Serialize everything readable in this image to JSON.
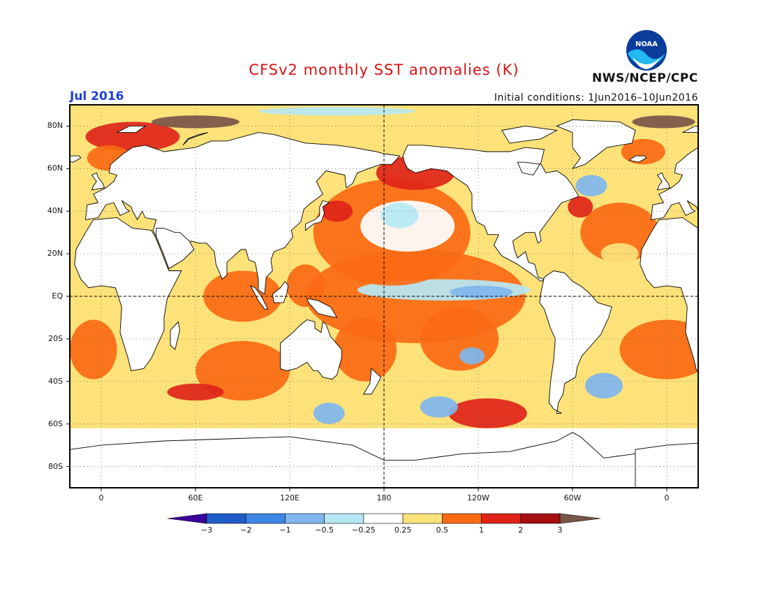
{
  "title": "CFSv2 monthly SST anomalies (K)",
  "month_label": "Jul 2016",
  "initial_conditions": "Initial conditions: 1Jun2016–10Jun2016",
  "agency": "NWS/NCEP/CPC",
  "logo_text": "NOAA",
  "colors": {
    "land": "#ffffff",
    "frame": "#000000",
    "grid": "#666666"
  },
  "map": {
    "lon_range": [
      -20,
      380
    ],
    "lat_range": [
      -90,
      90
    ],
    "grid": "dotted",
    "dashed_reference_lines": [
      "equator",
      "180"
    ],
    "lat_ticks": [
      "80N",
      "60N",
      "40N",
      "20N",
      "EQ",
      "20S",
      "40S",
      "60S",
      "80S"
    ],
    "lat_tick_values": [
      80,
      60,
      40,
      20,
      0,
      -20,
      -40,
      -60,
      -80
    ],
    "lon_ticks": [
      "0",
      "60E",
      "120E",
      "180",
      "120W",
      "60W",
      "0"
    ],
    "lon_tick_values": [
      0,
      60,
      120,
      180,
      240,
      300,
      360
    ]
  },
  "colorbar": {
    "labels": [
      "−3",
      "−2",
      "−1",
      "−0.5",
      "−0.25",
      "0.25",
      "0.5",
      "1",
      "2",
      "3"
    ],
    "bins": [
      {
        "color": "#3a0099"
      },
      {
        "color": "#1f5ec8"
      },
      {
        "color": "#3d86e4"
      },
      {
        "color": "#7fb6ee"
      },
      {
        "color": "#b6e8f4"
      },
      {
        "color": "#ffffff"
      },
      {
        "color": "#fde27a"
      },
      {
        "color": "#fb6a12"
      },
      {
        "color": "#e02418"
      },
      {
        "color": "#a50f12"
      },
      {
        "color": "#795548"
      }
    ]
  },
  "anomaly_regions": [
    {
      "level": 7,
      "lon": 200,
      "lat": 0,
      "rx": 70,
      "ry": 22
    },
    {
      "level": 4,
      "lon": 218,
      "lat": 3,
      "rx": 55,
      "ry": 5
    },
    {
      "level": 3,
      "lon": 242,
      "lat": 2,
      "rx": 20,
      "ry": 3
    },
    {
      "level": 7,
      "lon": 185,
      "lat": 30,
      "rx": 50,
      "ry": 25
    },
    {
      "level": 5,
      "lon": 195,
      "lat": 33,
      "rx": 30,
      "ry": 12
    },
    {
      "level": 4,
      "lon": 190,
      "lat": 38,
      "rx": 12,
      "ry": 6
    },
    {
      "level": 8,
      "lon": 200,
      "lat": 58,
      "rx": 25,
      "ry": 8
    },
    {
      "level": 8,
      "lon": 150,
      "lat": 40,
      "rx": 10,
      "ry": 5
    },
    {
      "level": 7,
      "lon": 90,
      "lat": 0,
      "rx": 25,
      "ry": 12
    },
    {
      "level": 7,
      "lon": 90,
      "lat": -35,
      "rx": 30,
      "ry": 14
    },
    {
      "level": 8,
      "lon": 60,
      "lat": -45,
      "rx": 18,
      "ry": 4
    },
    {
      "level": 7,
      "lon": 130,
      "lat": 5,
      "rx": 12,
      "ry": 10
    },
    {
      "level": 7,
      "lon": 168,
      "lat": -25,
      "rx": 20,
      "ry": 15
    },
    {
      "level": 3,
      "lon": 145,
      "lat": -55,
      "rx": 10,
      "ry": 5
    },
    {
      "level": 7,
      "lon": 228,
      "lat": -20,
      "rx": 25,
      "ry": 15
    },
    {
      "level": 3,
      "lon": 236,
      "lat": -28,
      "rx": 8,
      "ry": 4
    },
    {
      "level": 8,
      "lon": 246,
      "lat": -55,
      "rx": 25,
      "ry": 7
    },
    {
      "level": 3,
      "lon": 215,
      "lat": -52,
      "rx": 12,
      "ry": 5
    },
    {
      "level": 7,
      "lon": 330,
      "lat": 30,
      "rx": 25,
      "ry": 14
    },
    {
      "level": 6,
      "lon": 330,
      "lat": 20,
      "rx": 12,
      "ry": 5
    },
    {
      "level": 8,
      "lon": 305,
      "lat": 42,
      "rx": 8,
      "ry": 5
    },
    {
      "level": 3,
      "lon": 312,
      "lat": 52,
      "rx": 10,
      "ry": 5
    },
    {
      "level": 7,
      "lon": 360,
      "lat": -25,
      "rx": 30,
      "ry": 14
    },
    {
      "level": 3,
      "lon": 320,
      "lat": -42,
      "rx": 12,
      "ry": 6
    },
    {
      "level": 7,
      "lon": -5,
      "lat": -25,
      "rx": 15,
      "ry": 14
    },
    {
      "level": 8,
      "lon": 20,
      "lat": 75,
      "rx": 30,
      "ry": 7
    },
    {
      "level": 10,
      "lon": 60,
      "lat": 82,
      "rx": 28,
      "ry": 3
    },
    {
      "level": 10,
      "lon": 358,
      "lat": 82,
      "rx": 20,
      "ry": 3
    },
    {
      "level": 7,
      "lon": 5,
      "lat": 65,
      "rx": 14,
      "ry": 6
    },
    {
      "level": 7,
      "lon": 345,
      "lat": 68,
      "rx": 14,
      "ry": 6
    },
    {
      "level": 4,
      "lon": 150,
      "lat": 87,
      "rx": 50,
      "ry": 2
    }
  ]
}
